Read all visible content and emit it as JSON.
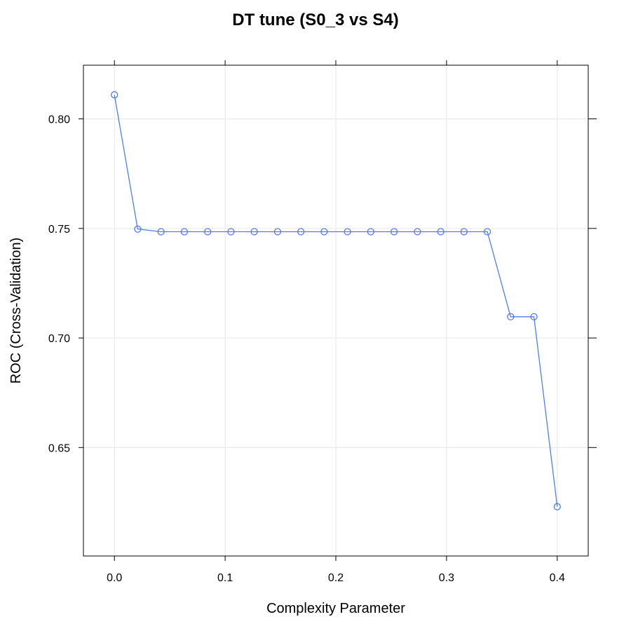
{
  "chart_data": {
    "type": "line",
    "title": "DT tune (S0_3 vs S4)",
    "xlabel": "Complexity Parameter",
    "ylabel": "ROC (Cross-Validation)",
    "x_ticks": [
      0.0,
      0.1,
      0.2,
      0.3,
      0.4
    ],
    "x_tick_labels": [
      "0.0",
      "0.1",
      "0.2",
      "0.3",
      "0.4"
    ],
    "y_ticks": [
      0.65,
      0.7,
      0.75,
      0.8
    ],
    "y_tick_labels": [
      "0.65",
      "0.70",
      "0.75",
      "0.80"
    ],
    "xlim": [
      -0.028,
      0.428
    ],
    "ylim": [
      0.6005,
      0.8245
    ],
    "grid": true,
    "colors": {
      "series": "#4f7ee8",
      "grid": "#e6e6e6",
      "axis": "#000000"
    },
    "series": [
      {
        "marker": "open-circle",
        "x": [
          0.0,
          0.02105,
          0.04211,
          0.06316,
          0.08421,
          0.10526,
          0.12632,
          0.14737,
          0.16842,
          0.18947,
          0.21053,
          0.23158,
          0.25263,
          0.27368,
          0.29474,
          0.31579,
          0.33684,
          0.35789,
          0.37895,
          0.4
        ],
        "y": [
          0.811,
          0.7497,
          0.7485,
          0.7485,
          0.7485,
          0.7485,
          0.7485,
          0.7485,
          0.7485,
          0.7485,
          0.7485,
          0.7485,
          0.7485,
          0.7485,
          0.7485,
          0.7485,
          0.7485,
          0.7097,
          0.7097,
          0.623
        ]
      }
    ]
  }
}
